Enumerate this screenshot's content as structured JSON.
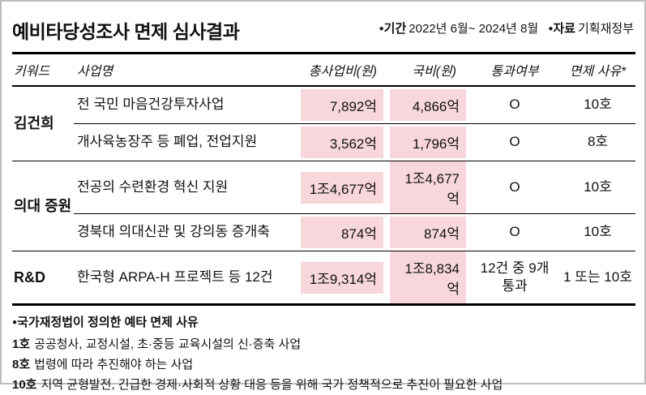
{
  "header": {
    "title": "예비타당성조사 면제 심사결과",
    "bullet": "●",
    "meta": [
      {
        "label": "기간",
        "value": "2022년 6월~ 2024년 8월"
      },
      {
        "label": "자료",
        "value": "기획재정부"
      }
    ]
  },
  "chart_data": {
    "type": "table",
    "title": "예비타당성조사 면제 심사결과",
    "columns": [
      "키워드",
      "사업명",
      "총사업비(원)",
      "국비(원)",
      "통과여부",
      "면제 사유*"
    ],
    "groups": [
      {
        "keyword": "김건희",
        "rows": [
          {
            "name": "전 국민 마음건강투자사업",
            "total": "7,892억",
            "national": "4,866억",
            "pass": "O",
            "reason": "10호"
          },
          {
            "name": "개사육농장주 등 폐업, 전업지원",
            "total": "3,562억",
            "national": "1,796억",
            "pass": "O",
            "reason": "8호"
          }
        ]
      },
      {
        "keyword": "의대 증원",
        "rows": [
          {
            "name": "전공의 수련환경 혁신 지원",
            "total": "1조4,677억",
            "national": "1조4,677억",
            "pass": "O",
            "reason": "10호"
          },
          {
            "name": "경북대 의대신관 및 강의동 증개축",
            "total": "874억",
            "national": "874억",
            "pass": "O",
            "reason": "10호"
          }
        ]
      },
      {
        "keyword": "R&D",
        "rows": [
          {
            "name": "한국형 ARPA-H 프로젝트 등 12건",
            "total": "1조9,314억",
            "national": "1조8,834억",
            "pass": "12건 중 9개 통과",
            "reason": "1 또는 10호"
          }
        ]
      }
    ]
  },
  "footnotes": {
    "bullet": "●",
    "heading": "국가재정법이 정의한 예타 면제 사유",
    "items": [
      {
        "label": "1호",
        "text": "공공청사, 교정시설, 초·중등 교육시설의 신·증축 사업"
      },
      {
        "label": "8호",
        "text": "법령에 따라 추진해야 하는 사업"
      },
      {
        "label": "10호",
        "text": "지역 균형발전, 긴급한 경제·사회적 상황 대응 등을 위해 국가 정책적으로 추진이 필요한 사업"
      }
    ]
  },
  "colors": {
    "highlight": "#f8d7dc",
    "border": "#000000"
  }
}
